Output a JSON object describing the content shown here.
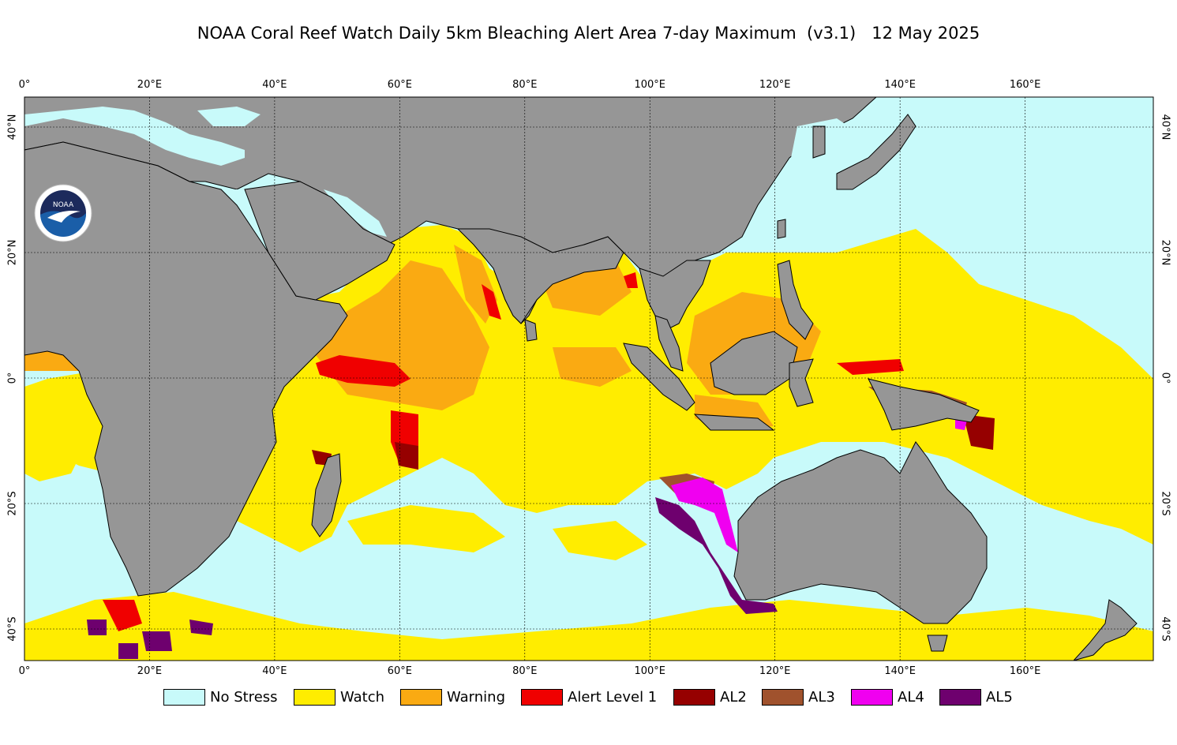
{
  "title": "NOAA Coral Reef Watch Daily 5km Bleaching Alert Area 7-day Maximum  (v3.1)   12 May 2025",
  "lon_ticks": [
    "0°",
    "20°E",
    "40°E",
    "60°E",
    "80°E",
    "100°E",
    "120°E",
    "140°E",
    "160°E"
  ],
  "lat_ticks": [
    "40°N",
    "20°N",
    "0°",
    "20°S",
    "40°S"
  ],
  "logo_text": "NOAA",
  "legend": [
    {
      "label": "No Stress",
      "color": "#c8fafa"
    },
    {
      "label": "Watch",
      "color": "#ffed00"
    },
    {
      "label": "Warning",
      "color": "#faaa12"
    },
    {
      "label": "Alert Level 1",
      "color": "#f00000"
    },
    {
      "label": "AL2",
      "color": "#960000"
    },
    {
      "label": "AL3",
      "color": "#a0522d"
    },
    {
      "label": "AL4",
      "color": "#f000f0"
    },
    {
      "label": "AL5",
      "color": "#6e006e"
    }
  ],
  "colors": {
    "land": "#969696",
    "no_stress": "#c8fafa",
    "watch": "#ffed00",
    "warning": "#faaa12",
    "alert1": "#f00000",
    "al2": "#960000",
    "al3": "#a0522d",
    "al4": "#f000f0",
    "al5": "#6e006e",
    "logo_blue": "#1a5ea8",
    "logo_navy": "#1c2a5c"
  }
}
